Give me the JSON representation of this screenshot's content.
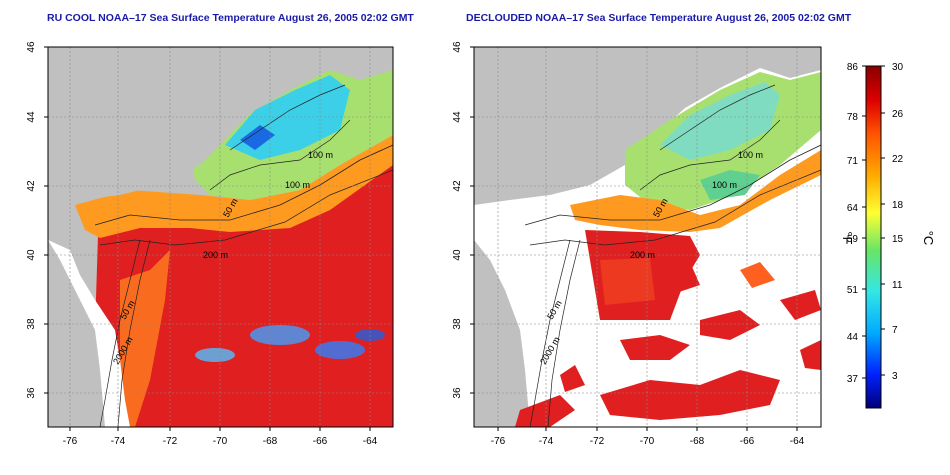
{
  "panels": [
    {
      "title": "RU COOL NOAA–17 Sea Surface Temperature August 26, 2005 02:02 GMT",
      "x_ticks": [
        "-76",
        "-74",
        "-72",
        "-70",
        "-68",
        "-66",
        "-64"
      ],
      "y_ticks": [
        "46",
        "44",
        "42",
        "40",
        "38",
        "36"
      ],
      "contour_labels": [
        "100 m",
        "100 m",
        "50 m",
        "200 m",
        "50 m",
        "2000 m"
      ],
      "declouded": false
    },
    {
      "title": "DECLOUDED NOAA–17 Sea Surface Temperature August 26, 2005 02:02 GMT",
      "x_ticks": [
        "-76",
        "-74",
        "-72",
        "-70",
        "-68",
        "-66",
        "-64"
      ],
      "y_ticks": [
        "46",
        "44",
        "42",
        "40",
        "38",
        "36"
      ],
      "contour_labels": [
        "100 m",
        "100 m",
        "50 m",
        "200 m",
        "50 m",
        "2000 m"
      ],
      "declouded": true
    }
  ],
  "colorbar": {
    "fahrenheit_ticks": [
      "86",
      "78",
      "71",
      "64",
      "59",
      "51",
      "44",
      "37"
    ],
    "celsius_ticks": [
      "30",
      "26",
      "22",
      "18",
      "15",
      "11",
      "7",
      "3"
    ],
    "left_unit": "°F",
    "right_unit": "°C",
    "colors": [
      "#00007a",
      "#0022ff",
      "#00aaff",
      "#33e6e6",
      "#66e666",
      "#ffff33",
      "#ffaa00",
      "#ff5500",
      "#dd0000",
      "#880000"
    ]
  },
  "map_colors": {
    "land": "#c0c0c0",
    "cloud": "#ffffff",
    "gulf_of_maine": "#3ccfe8",
    "shelf": "#a8e070",
    "slope": "#ff9a20",
    "offshore": "#e02020"
  }
}
